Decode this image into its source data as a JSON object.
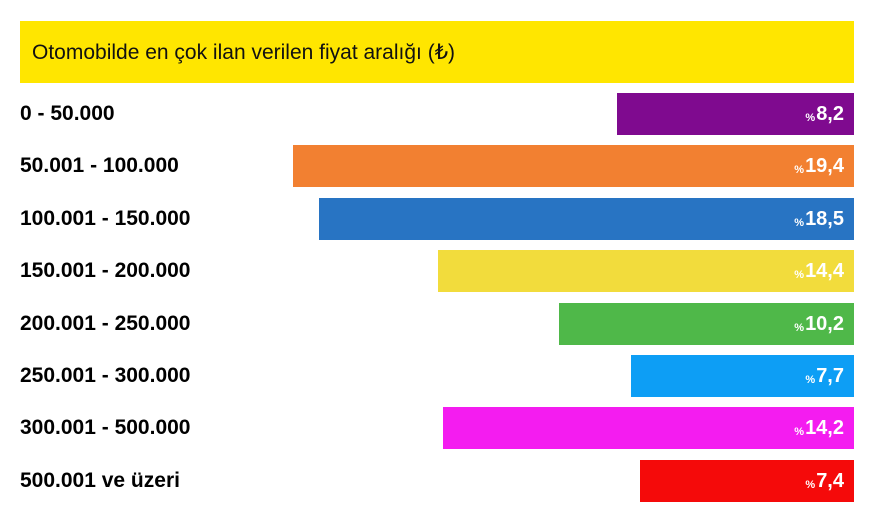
{
  "chart_data": {
    "type": "bar",
    "orientation": "horizontal",
    "title": "Otomobilde en çok ilan verilen fiyat aralığı (₺)",
    "categories": [
      "0 - 50.000",
      "50.001 - 100.000",
      "100.001 - 150.000",
      "150.001 - 200.000",
      "200.001 - 250.000",
      "250.001 - 300.000",
      "300.001 - 500.000",
      "500.001 ve üzeri"
    ],
    "values": [
      8.2,
      19.4,
      18.5,
      14.4,
      10.2,
      7.7,
      14.2,
      7.4
    ],
    "value_labels": [
      "8,2",
      "19,4",
      "18,5",
      "14,4",
      "10,2",
      "7,7",
      "14,2",
      "7,4"
    ],
    "value_prefix": "%",
    "colors": [
      "#7f0a8f",
      "#f28031",
      "#2874c3",
      "#f2dc3c",
      "#4fb849",
      "#0d9ef5",
      "#f41cf0",
      "#f50a0a"
    ],
    "title_background": "#ffe600",
    "xlim": [
      0,
      20
    ],
    "bar_alignment": "right",
    "grid": false,
    "legend": "none"
  }
}
